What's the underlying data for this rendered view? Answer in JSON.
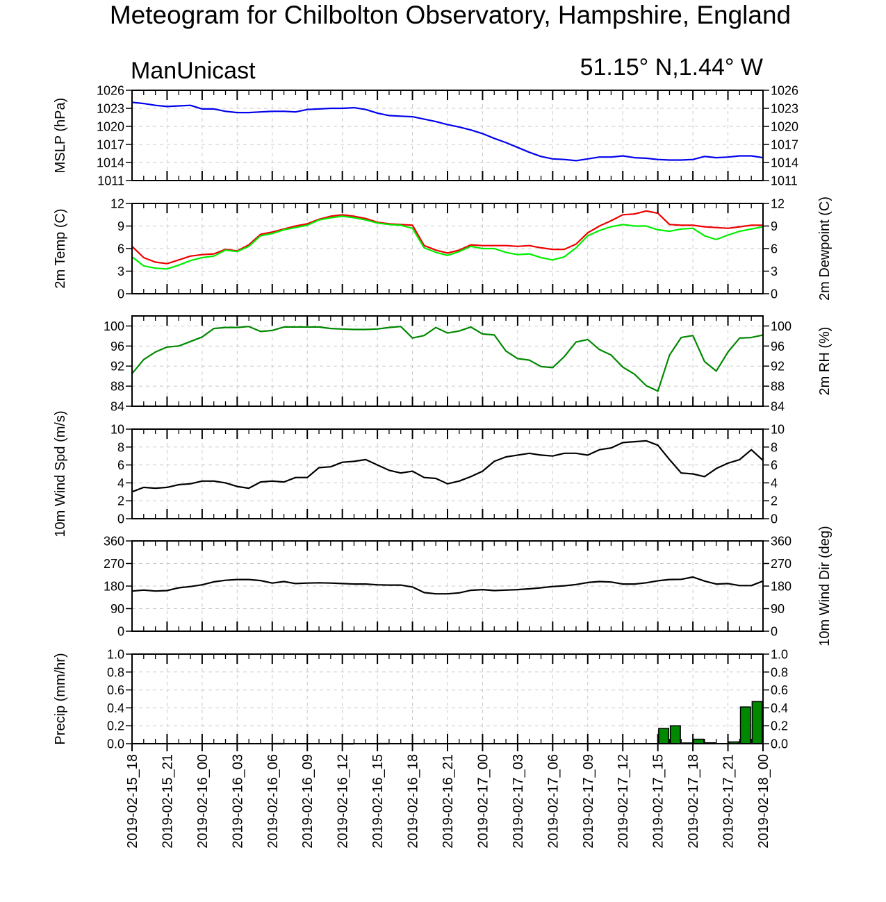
{
  "title": "Meteogram for Chilbolton Observatory, Hampshire, England",
  "model_label": "ManUnicast",
  "location_label": "51.15° N,1.44° W",
  "chart_data": {
    "type": "line",
    "x_labels": [
      "2019-02-15_18",
      "2019-02-15_21",
      "2019-02-16_00",
      "2019-02-16_03",
      "2019-02-16_06",
      "2019-02-16_09",
      "2019-02-16_12",
      "2019-02-16_15",
      "2019-02-16_18",
      "2019-02-16_21",
      "2019-02-17_00",
      "2019-02-17_03",
      "2019-02-17_06",
      "2019-02-17_09",
      "2019-02-17_12",
      "2019-02-17_15",
      "2019-02-17_18",
      "2019-02-17_21",
      "2019-02-18_00"
    ],
    "x_range_hours": [
      0,
      54
    ],
    "grid": true,
    "panels": [
      {
        "type": "line",
        "ylabel": "MSLP (hPa)",
        "ylabel_right": "",
        "ylim": [
          1011,
          1026
        ],
        "yticks": [
          1011,
          1014,
          1017,
          1020,
          1023,
          1026
        ],
        "mirror_right_ticks": true,
        "series": [
          {
            "color": "#0000ee",
            "x": [
              0,
              1,
              2,
              3,
              4,
              5,
              6,
              7,
              8,
              9,
              10,
              11,
              12,
              13,
              14,
              15,
              16,
              17,
              18,
              19,
              20,
              21,
              22,
              23,
              24,
              25,
              26,
              27,
              28,
              29,
              30,
              31,
              32,
              33,
              34,
              35,
              36,
              37,
              38,
              39,
              40,
              41,
              42,
              43,
              44,
              45,
              46,
              47,
              48,
              49,
              50,
              51,
              52,
              53,
              54
            ],
            "y": [
              1024.0,
              1023.8,
              1023.5,
              1023.3,
              1023.4,
              1023.5,
              1022.9,
              1022.9,
              1022.5,
              1022.3,
              1022.3,
              1022.4,
              1022.5,
              1022.5,
              1022.4,
              1022.8,
              1022.9,
              1023.0,
              1023.0,
              1023.1,
              1022.8,
              1022.2,
              1021.8,
              1021.7,
              1021.6,
              1021.2,
              1020.8,
              1020.3,
              1019.9,
              1019.4,
              1018.8,
              1018.0,
              1017.3,
              1016.5,
              1015.7,
              1015.0,
              1014.6,
              1014.5,
              1014.3,
              1014.6,
              1014.9,
              1014.9,
              1015.1,
              1014.8,
              1014.7,
              1014.5,
              1014.4,
              1014.4,
              1014.5,
              1015.0,
              1014.8,
              1014.9,
              1015.1,
              1015.1,
              1014.8
            ]
          }
        ]
      },
      {
        "type": "line",
        "ylabel": "2m Temp (C)",
        "ylabel_right": "2m Dewpoint (C)",
        "ylim": [
          0,
          12
        ],
        "yticks": [
          0,
          3,
          6,
          9,
          12
        ],
        "series": [
          {
            "color": "#ee0000",
            "x": [
              0,
              1,
              2,
              3,
              4,
              5,
              6,
              7,
              8,
              9,
              10,
              11,
              12,
              13,
              14,
              15,
              16,
              17,
              18,
              19,
              20,
              21,
              22,
              23,
              24,
              25,
              26,
              27,
              28,
              29,
              30,
              31,
              32,
              33,
              34,
              35,
              36,
              37,
              38,
              39,
              40,
              41,
              42,
              43,
              44,
              45,
              46,
              47,
              48,
              49,
              50,
              51,
              52,
              53,
              54
            ],
            "y": [
              6.3,
              4.8,
              4.2,
              4.0,
              4.5,
              5.0,
              5.2,
              5.3,
              5.9,
              5.7,
              6.5,
              7.9,
              8.2,
              8.6,
              9.0,
              9.3,
              9.9,
              10.3,
              10.5,
              10.3,
              10.0,
              9.5,
              9.3,
              9.2,
              9.1,
              6.4,
              5.8,
              5.4,
              5.8,
              6.5,
              6.4,
              6.4,
              6.4,
              6.3,
              6.4,
              6.1,
              5.9,
              5.9,
              6.6,
              8.1,
              9.0,
              9.7,
              10.5,
              10.6,
              11.0,
              10.7,
              9.2,
              9.1,
              9.1,
              8.9,
              8.8,
              8.7,
              8.9,
              9.1,
              9.1
            ]
          },
          {
            "color": "#00ee00",
            "x": [
              0,
              1,
              2,
              3,
              4,
              5,
              6,
              7,
              8,
              9,
              10,
              11,
              12,
              13,
              14,
              15,
              16,
              17,
              18,
              19,
              20,
              21,
              22,
              23,
              24,
              25,
              26,
              27,
              28,
              29,
              30,
              31,
              32,
              33,
              34,
              35,
              36,
              37,
              38,
              39,
              40,
              41,
              42,
              43,
              44,
              45,
              46,
              47,
              48,
              49,
              50,
              51,
              52,
              53,
              54
            ],
            "y": [
              4.9,
              3.7,
              3.4,
              3.3,
              3.8,
              4.4,
              4.8,
              5.0,
              5.8,
              5.6,
              6.3,
              7.7,
              8.0,
              8.5,
              8.8,
              9.1,
              9.8,
              10.1,
              10.3,
              10.1,
              9.8,
              9.4,
              9.2,
              9.1,
              8.7,
              6.1,
              5.5,
              5.1,
              5.6,
              6.3,
              6.0,
              6.0,
              5.5,
              5.2,
              5.3,
              4.8,
              4.5,
              4.9,
              6.1,
              7.7,
              8.4,
              8.9,
              9.2,
              9.0,
              9.0,
              8.5,
              8.3,
              8.6,
              8.7,
              7.7,
              7.2,
              7.8,
              8.3,
              8.6,
              8.9
            ]
          }
        ]
      },
      {
        "type": "line",
        "ylabel": "",
        "ylabel_right": "2m RH (%)",
        "ylim": [
          84,
          102
        ],
        "yticks": [
          84,
          88,
          92,
          96,
          100
        ],
        "series": [
          {
            "color": "#008800",
            "x": [
              0,
              1,
              2,
              3,
              4,
              5,
              6,
              7,
              8,
              9,
              10,
              11,
              12,
              13,
              14,
              15,
              16,
              17,
              18,
              19,
              20,
              21,
              22,
              23,
              24,
              25,
              26,
              27,
              28,
              29,
              30,
              31,
              32,
              33,
              34,
              35,
              36,
              37,
              38,
              39,
              40,
              41,
              42,
              43,
              44,
              45,
              46,
              47,
              48,
              49,
              50,
              51,
              52,
              53,
              54
            ],
            "y": [
              90.5,
              93.3,
              94.8,
              95.8,
              96.0,
              96.9,
              97.8,
              99.5,
              99.7,
              99.7,
              99.9,
              98.9,
              99.1,
              99.8,
              99.8,
              99.8,
              99.8,
              99.5,
              99.4,
              99.3,
              99.3,
              99.4,
              99.7,
              99.9,
              97.6,
              98.1,
              99.7,
              98.6,
              99.0,
              99.8,
              98.4,
              98.2,
              95.0,
              93.5,
              93.2,
              91.9,
              91.7,
              93.9,
              96.8,
              97.3,
              95.3,
              94.2,
              91.8,
              90.4,
              88.1,
              87.0,
              94.2,
              97.7,
              98.1,
              92.9,
              91.0,
              94.8,
              97.6,
              97.7,
              98.2
            ]
          }
        ]
      },
      {
        "type": "line",
        "ylabel": "10m Wind Spd (m/s)",
        "ylabel_right": "",
        "ylim": [
          0,
          10
        ],
        "yticks": [
          0,
          2,
          4,
          6,
          8,
          10
        ],
        "series": [
          {
            "color": "#000000",
            "x": [
              0,
              1,
              2,
              3,
              4,
              5,
              6,
              7,
              8,
              9,
              10,
              11,
              12,
              13,
              14,
              15,
              16,
              17,
              18,
              19,
              20,
              21,
              22,
              23,
              24,
              25,
              26,
              27,
              28,
              29,
              30,
              31,
              32,
              33,
              34,
              35,
              36,
              37,
              38,
              39,
              40,
              41,
              42,
              43,
              44,
              45,
              46,
              47,
              48,
              49,
              50,
              51,
              52,
              53,
              54
            ],
            "y": [
              3.0,
              3.5,
              3.4,
              3.5,
              3.8,
              3.9,
              4.2,
              4.2,
              4.0,
              3.6,
              3.4,
              4.1,
              4.2,
              4.1,
              4.6,
              4.6,
              5.7,
              5.8,
              6.3,
              6.4,
              6.6,
              6.0,
              5.4,
              5.1,
              5.3,
              4.6,
              4.5,
              3.9,
              4.2,
              4.7,
              5.3,
              6.4,
              6.9,
              7.1,
              7.3,
              7.1,
              7.0,
              7.3,
              7.3,
              7.1,
              7.7,
              7.9,
              8.5,
              8.6,
              8.7,
              8.2,
              6.6,
              5.1,
              5.0,
              4.7,
              5.6,
              6.2,
              6.6,
              7.7,
              6.5
            ]
          }
        ]
      },
      {
        "type": "line",
        "ylabel": "",
        "ylabel_right": "10m Wind Dir (deg)",
        "ylim": [
          0,
          360
        ],
        "yticks": [
          0,
          90,
          180,
          270,
          360
        ],
        "series": [
          {
            "color": "#000000",
            "x": [
              0,
              1,
              2,
              3,
              4,
              5,
              6,
              7,
              8,
              9,
              10,
              11,
              12,
              13,
              14,
              15,
              16,
              17,
              18,
              19,
              20,
              21,
              22,
              23,
              24,
              25,
              26,
              27,
              28,
              29,
              30,
              31,
              32,
              33,
              34,
              35,
              36,
              37,
              38,
              39,
              40,
              41,
              42,
              43,
              44,
              45,
              46,
              47,
              48,
              49,
              50,
              51,
              52,
              53,
              54
            ],
            "y": [
              160,
              164,
              160,
              162,
              173,
              178,
              185,
              197,
              203,
              206,
              206,
              202,
              192,
              198,
              190,
              192,
              193,
              192,
              190,
              188,
              188,
              185,
              184,
              184,
              176,
              154,
              149,
              149,
              153,
              163,
              166,
              162,
              164,
              166,
              169,
              173,
              178,
              181,
              186,
              194,
              198,
              196,
              188,
              188,
              193,
              201,
              206,
              207,
              216,
              200,
              188,
              190,
              182,
              182,
              200
            ]
          }
        ]
      },
      {
        "type": "bar",
        "ylabel": "Precip (mm/hr)",
        "ylabel_right": "",
        "ylim": [
          0,
          1.0
        ],
        "yticks": [
          0.0,
          0.2,
          0.4,
          0.6,
          0.8,
          1.0
        ],
        "bar_color": "#008800",
        "bar_edge": "#000000",
        "series": [
          {
            "x": [
              12,
              18,
              21,
              45,
              46,
              47,
              48,
              49,
              51,
              52,
              53
            ],
            "y": [
              0.003,
              0.002,
              0.003,
              0.17,
              0.2,
              0.008,
              0.05,
              0.01,
              0.02,
              0.41,
              0.47
            ]
          }
        ]
      }
    ]
  }
}
